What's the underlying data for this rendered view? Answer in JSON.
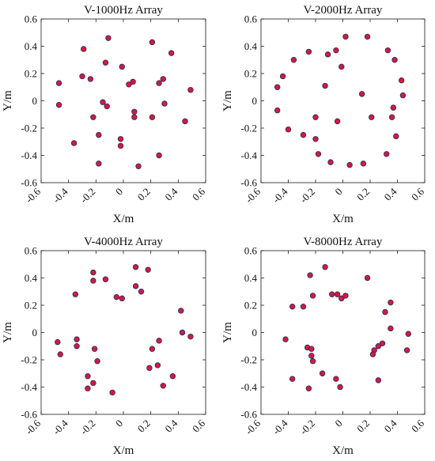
{
  "chart_data": [
    {
      "type": "scatter",
      "title": "V-1000Hz Array",
      "xlabel": "X/m",
      "ylabel": "Y/m",
      "xlim": [
        -0.6,
        0.6
      ],
      "ylim": [
        -0.6,
        0.6
      ],
      "xticks": [
        "-0.6",
        "-0.4",
        "-0.2",
        "0",
        "0.2",
        "0.4",
        "0.6"
      ],
      "yticks": [
        "-0.6",
        "-0.4",
        "-0.2",
        "0",
        "0.2",
        "0.4",
        "0.6"
      ],
      "grid": false,
      "marker_color": "#d6193a",
      "marker_edge_color": "#1f2a6b",
      "points": [
        [
          -0.11,
          0.46
        ],
        [
          -0.29,
          0.38
        ],
        [
          0.21,
          0.43
        ],
        [
          0.35,
          0.35
        ],
        [
          -0.47,
          0.13
        ],
        [
          -0.47,
          -0.03
        ],
        [
          -0.3,
          0.18
        ],
        [
          -0.24,
          0.16
        ],
        [
          -0.13,
          0.28
        ],
        [
          -0.01,
          0.25
        ],
        [
          0.04,
          0.12
        ],
        [
          0.07,
          0.14
        ],
        [
          0.26,
          0.13
        ],
        [
          0.29,
          0.16
        ],
        [
          0.49,
          0.08
        ],
        [
          -0.15,
          -0.01
        ],
        [
          -0.12,
          -0.04
        ],
        [
          -0.22,
          -0.12
        ],
        [
          0.08,
          -0.08
        ],
        [
          0.08,
          -0.12
        ],
        [
          0.21,
          -0.12
        ],
        [
          0.3,
          -0.02
        ],
        [
          0.45,
          -0.15
        ],
        [
          -0.18,
          -0.25
        ],
        [
          -0.02,
          -0.28
        ],
        [
          -0.02,
          -0.33
        ],
        [
          -0.36,
          -0.31
        ],
        [
          -0.18,
          -0.46
        ],
        [
          0.11,
          -0.48
        ],
        [
          0.26,
          -0.4
        ]
      ]
    },
    {
      "type": "scatter",
      "title": "V-2000Hz Array",
      "xlabel": "X/m",
      "ylabel": "Y/m",
      "xlim": [
        -0.6,
        0.6
      ],
      "ylim": [
        -0.6,
        0.6
      ],
      "xticks": [
        "-0.6",
        "-0.4",
        "-0.2",
        "0",
        "0.2",
        "0.4",
        "0.6"
      ],
      "yticks": [
        "-0.6",
        "-0.4",
        "-0.2",
        "0",
        "0.2",
        "0.4",
        "0.6"
      ],
      "grid": false,
      "marker_color": "#d6193a",
      "marker_edge_color": "#1f2a6b",
      "points": [
        [
          0.02,
          0.47
        ],
        [
          0.18,
          0.47
        ],
        [
          -0.05,
          0.37
        ],
        [
          -0.11,
          0.34
        ],
        [
          -0.25,
          0.36
        ],
        [
          -0.36,
          0.3
        ],
        [
          0.33,
          0.37
        ],
        [
          0.38,
          0.3
        ],
        [
          -0.44,
          0.18
        ],
        [
          -0.48,
          0.1
        ],
        [
          -0.01,
          0.25
        ],
        [
          -0.13,
          0.11
        ],
        [
          0.43,
          0.15
        ],
        [
          0.44,
          0.04
        ],
        [
          0.14,
          0.05
        ],
        [
          -0.48,
          -0.07
        ],
        [
          0.37,
          -0.05
        ],
        [
          0.36,
          -0.12
        ],
        [
          -0.4,
          -0.21
        ],
        [
          -0.2,
          -0.12
        ],
        [
          -0.04,
          -0.15
        ],
        [
          0.21,
          -0.12
        ],
        [
          -0.29,
          -0.25
        ],
        [
          -0.2,
          -0.28
        ],
        [
          0.39,
          -0.26
        ],
        [
          -0.18,
          -0.39
        ],
        [
          0.32,
          -0.39
        ],
        [
          -0.09,
          -0.45
        ],
        [
          0.05,
          -0.47
        ],
        [
          0.15,
          -0.46
        ]
      ]
    },
    {
      "type": "scatter",
      "title": "V-4000Hz Array",
      "xlabel": "X/m",
      "ylabel": "Y/m",
      "xlim": [
        -0.6,
        0.6
      ],
      "ylim": [
        -0.6,
        0.6
      ],
      "xticks": [
        "-0.6",
        "-0.4",
        "-0.2",
        "0",
        "0.2",
        "0.4",
        "0.6"
      ],
      "yticks": [
        "-0.6",
        "-0.4",
        "-0.2",
        "0",
        "0.2",
        "0.4",
        "0.6"
      ],
      "grid": false,
      "marker_color": "#d6193a",
      "marker_edge_color": "#1f2a6b",
      "points": [
        [
          0.09,
          0.48
        ],
        [
          0.18,
          0.46
        ],
        [
          -0.22,
          0.44
        ],
        [
          -0.22,
          0.38
        ],
        [
          -0.13,
          0.39
        ],
        [
          0.09,
          0.34
        ],
        [
          0.13,
          0.3
        ],
        [
          -0.35,
          0.28
        ],
        [
          -0.05,
          0.26
        ],
        [
          -0.01,
          0.25
        ],
        [
          0.42,
          0.16
        ],
        [
          0.43,
          0.0
        ],
        [
          0.49,
          -0.03
        ],
        [
          -0.48,
          -0.07
        ],
        [
          -0.34,
          -0.05
        ],
        [
          -0.34,
          -0.1
        ],
        [
          0.26,
          -0.06
        ],
        [
          -0.21,
          -0.12
        ],
        [
          0.21,
          -0.12
        ],
        [
          -0.46,
          -0.16
        ],
        [
          -0.19,
          -0.21
        ],
        [
          0.19,
          -0.26
        ],
        [
          0.25,
          -0.24
        ],
        [
          0.36,
          -0.32
        ],
        [
          -0.26,
          -0.32
        ],
        [
          -0.22,
          -0.37
        ],
        [
          0.29,
          -0.39
        ],
        [
          -0.26,
          -0.41
        ],
        [
          -0.08,
          -0.44
        ]
      ]
    },
    {
      "type": "scatter",
      "title": "V-8000Hz Array",
      "xlabel": "X/m",
      "ylabel": "Y/m",
      "xlim": [
        -0.6,
        0.6
      ],
      "ylim": [
        -0.6,
        0.6
      ],
      "xticks": [
        "-0.6",
        "-0.4",
        "-0.2",
        "0",
        "0.2",
        "0.4",
        "0.6"
      ],
      "yticks": [
        "-0.6",
        "-0.4",
        "-0.2",
        "0",
        "0.2",
        "0.4",
        "0.6"
      ],
      "grid": false,
      "marker_color": "#d6193a",
      "marker_edge_color": "#1f2a6b",
      "points": [
        [
          -0.13,
          0.48
        ],
        [
          -0.24,
          0.42
        ],
        [
          0.18,
          0.4
        ],
        [
          -0.08,
          0.28
        ],
        [
          -0.04,
          0.28
        ],
        [
          -0.22,
          0.27
        ],
        [
          -0.01,
          0.25
        ],
        [
          0.02,
          0.27
        ],
        [
          -0.37,
          0.19
        ],
        [
          -0.29,
          0.19
        ],
        [
          0.35,
          0.22
        ],
        [
          0.31,
          0.15
        ],
        [
          0.35,
          0.03
        ],
        [
          0.48,
          -0.01
        ],
        [
          -0.42,
          -0.05
        ],
        [
          0.29,
          -0.08
        ],
        [
          0.26,
          -0.1
        ],
        [
          0.23,
          -0.13
        ],
        [
          0.22,
          -0.16
        ],
        [
          -0.26,
          -0.11
        ],
        [
          -0.23,
          -0.12
        ],
        [
          -0.23,
          -0.17
        ],
        [
          -0.22,
          -0.21
        ],
        [
          0.47,
          -0.13
        ],
        [
          -0.37,
          -0.34
        ],
        [
          -0.15,
          -0.3
        ],
        [
          -0.05,
          -0.34
        ],
        [
          0.26,
          -0.35
        ],
        [
          -0.25,
          -0.41
        ],
        [
          -0.02,
          -0.4
        ]
      ]
    }
  ]
}
